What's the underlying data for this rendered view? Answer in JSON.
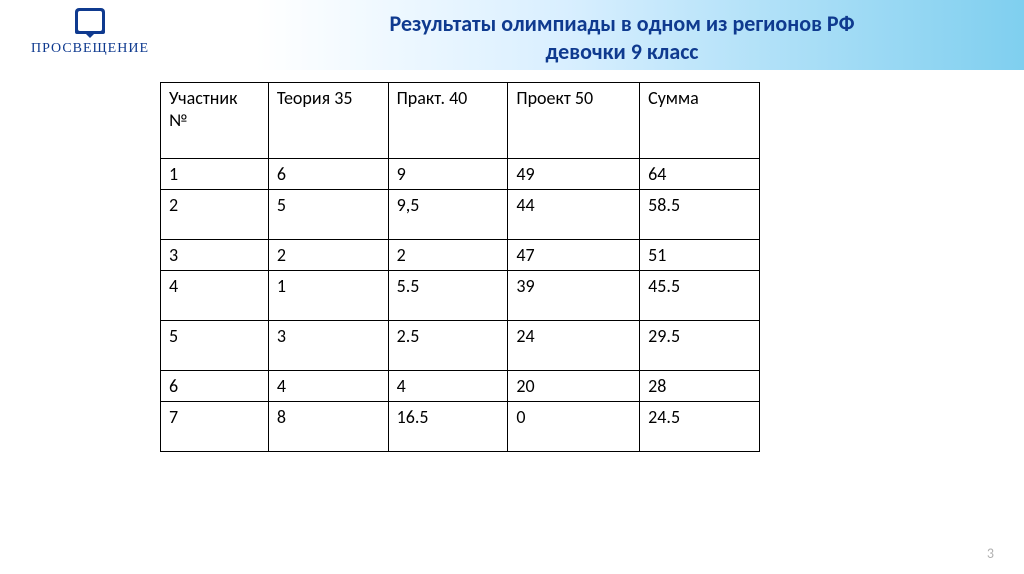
{
  "logo": {
    "text": "ПРОСВЕЩЕНИЕ"
  },
  "title": {
    "line1": "Результаты олимпиады в одном из регионов РФ",
    "line2": "девочки  9 класс"
  },
  "table": {
    "columns": [
      "Участник №",
      "Теория 35",
      "Практ. 40",
      "Проект 50",
      "Сумма"
    ],
    "col_widths_pct": [
      18,
      20,
      20,
      22,
      20
    ],
    "rows": [
      {
        "cells": [
          "1",
          "6",
          "9",
          "49",
          "64"
        ],
        "height": "short"
      },
      {
        "cells": [
          "2",
          "5",
          "9,5",
          "44",
          "58.5"
        ],
        "height": "tall"
      },
      {
        "cells": [
          "3",
          "2",
          "2",
          "47",
          "51"
        ],
        "height": "short"
      },
      {
        "cells": [
          "4",
          "1",
          "5.5",
          "39",
          "45.5"
        ],
        "height": "tall"
      },
      {
        "cells": [
          "5",
          "3",
          "2.5",
          "24",
          "29.5"
        ],
        "height": "tall"
      },
      {
        "cells": [
          "6",
          "4",
          "4",
          "20",
          "28"
        ],
        "height": "short"
      },
      {
        "cells": [
          "7",
          "8",
          "16.5",
          "0",
          "24.5"
        ],
        "height": "tall"
      }
    ],
    "border_color": "#000000",
    "text_color": "#000000",
    "font_size_pt": 18
  },
  "page_number": "3",
  "colors": {
    "title": "#0f3a8f",
    "band_start": "#ffffff",
    "band_mid": "#d9efff",
    "band_end": "#7fcfef",
    "page_num": "#b0b0b0"
  }
}
